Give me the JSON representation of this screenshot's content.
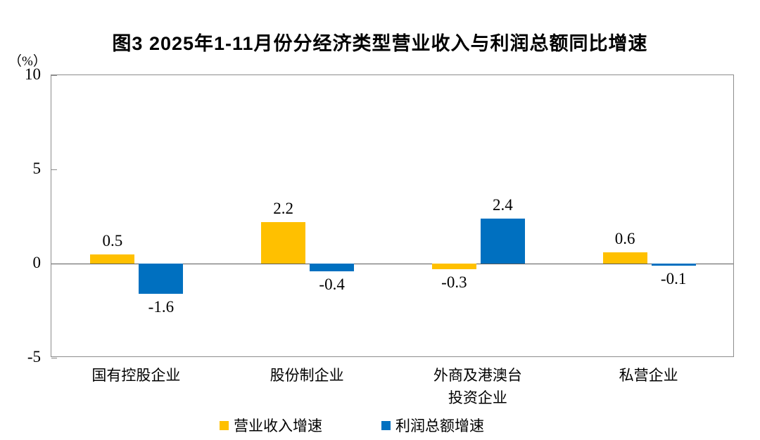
{
  "chart_data": {
    "type": "bar",
    "title": "图3  2025年1-11月份分经济类型营业收入与利润总额同比增速",
    "unit_label": "（%）",
    "categories": [
      "国有控股企业",
      "股份制企业",
      "外商及港澳台\n投资企业",
      "私营企业"
    ],
    "series": [
      {
        "name": "营业收入增速",
        "color": "#FFC000",
        "values": [
          0.5,
          2.2,
          -0.3,
          0.6
        ],
        "labels": [
          "0.5",
          "2.2",
          "-0.3",
          "0.6"
        ]
      },
      {
        "name": "利润总额增速",
        "color": "#0070C0",
        "values": [
          -1.6,
          -0.4,
          2.4,
          -0.1
        ],
        "labels": [
          "-1.6",
          "-0.4",
          "2.4",
          "-0.1"
        ]
      }
    ],
    "ylim": [
      -5,
      10
    ],
    "yticks": [
      "10",
      "5",
      "0",
      "-5"
    ],
    "grid": false,
    "legend_position": "bottom",
    "axis_color": "#8c8c8c",
    "zero_line_color": "#595959"
  }
}
